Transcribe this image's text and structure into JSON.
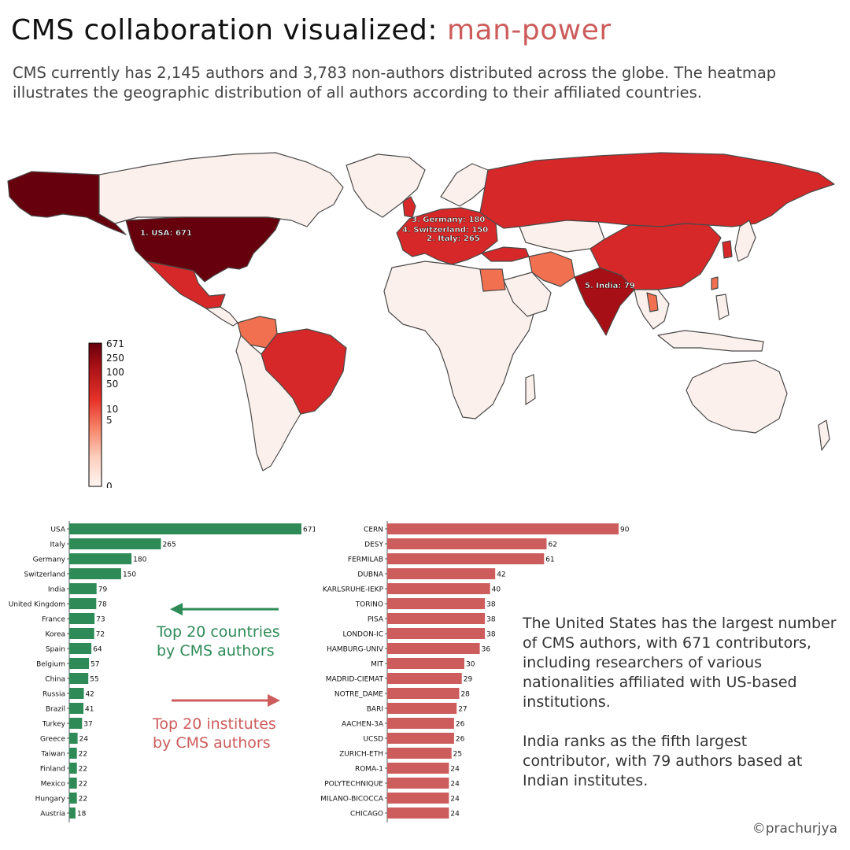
{
  "header": {
    "title_main": "CMS collaboration visualized: ",
    "title_accent": "man-power",
    "subtitle": "CMS currently has 2,145 authors and 3,783 non-authors distributed across the globe. The heatmap illustrates the geographic distribution of all authors according to their affiliated countries."
  },
  "colors": {
    "green": "#2e8b57",
    "red": "#cd5c5c",
    "map_dark": "#67000d",
    "map_mid": "#d62828",
    "map_light": "#fcf0ec",
    "map_orange": "#f07050",
    "border": "#4a4a4a"
  },
  "map": {
    "colorbar_ticks": [
      "671",
      "250",
      "100",
      "50",
      "10",
      "5",
      "0"
    ],
    "annotations": [
      "1. USA: 671",
      "2. Italy: 265",
      "3. Germany: 180",
      "4. Switzerland: 150",
      "5. India: 79"
    ]
  },
  "chart_data": [
    {
      "type": "bar",
      "orientation": "horizontal",
      "categories": [
        "USA",
        "Italy",
        "Germany",
        "Switzerland",
        "India",
        "United Kingdom",
        "France",
        "Korea",
        "Spain",
        "Belgium",
        "China",
        "Russia",
        "Brazil",
        "Turkey",
        "Greece",
        "Taiwan",
        "Finland",
        "Mexico",
        "Hungary",
        "Austria"
      ],
      "values": [
        671,
        265,
        180,
        150,
        79,
        78,
        73,
        72,
        64,
        57,
        55,
        42,
        41,
        37,
        24,
        22,
        22,
        22,
        22,
        18
      ],
      "color": "#2e8b57",
      "caption": "Top 20 countries by CMS authors"
    },
    {
      "type": "bar",
      "orientation": "horizontal",
      "categories": [
        "CERN",
        "DESY",
        "FERMILAB",
        "DUBNA",
        "KARLSRUHE-IEKP",
        "TORINO",
        "PISA",
        "LONDON-IC",
        "HAMBURG-UNIV",
        "MIT",
        "MADRID-CIEMAT",
        "NOTRE_DAME",
        "BARI",
        "AACHEN-3A",
        "UCSD",
        "ZURICH-ETH",
        "ROMA-1",
        "POLYTECHNIQUE",
        "MILANO-BICOCCA",
        "CHICAGO"
      ],
      "values": [
        90,
        62,
        61,
        42,
        40,
        38,
        38,
        38,
        36,
        30,
        29,
        28,
        27,
        26,
        26,
        25,
        24,
        24,
        24,
        24
      ],
      "color": "#cd5c5c",
      "caption": "Top 20 institutes by CMS authors"
    }
  ],
  "labels": {
    "countries_line1": "Top 20 countries",
    "countries_line2": "by CMS authors",
    "institutes_line1": "Top 20 institutes",
    "institutes_line2": "by CMS authors"
  },
  "notes": {
    "p1": "The United States has the largest number of CMS authors, with 671 contributors, including researchers of various nationalities affiliated with US-based institutions.",
    "p2": "India ranks as the fifth largest contributor, with 79 authors based at Indian institutes."
  },
  "footer": {
    "copyright": "©prachurjya"
  }
}
